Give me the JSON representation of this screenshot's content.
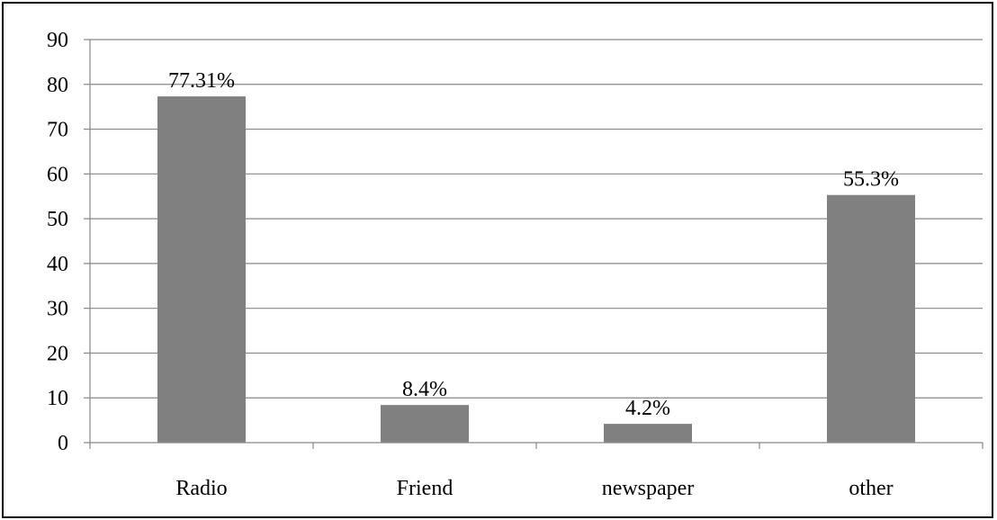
{
  "chart_data": {
    "type": "bar",
    "categories": [
      "Radio",
      "Friend",
      "newspaper",
      "other"
    ],
    "values": [
      77.31,
      8.4,
      4.2,
      55.3
    ],
    "data_labels": [
      "77.31%",
      "8.4%",
      "4.2%",
      "55.3%"
    ],
    "y_ticks": [
      "0",
      "10",
      "20",
      "30",
      "40",
      "50",
      "60",
      "70",
      "80",
      "90"
    ],
    "ylim": [
      0,
      90
    ],
    "y_step": 10,
    "grid": true,
    "legend": "none",
    "colors": {
      "bar": "#808080",
      "grid": "#868686",
      "axis": "#868686",
      "frame": "#000000"
    }
  }
}
